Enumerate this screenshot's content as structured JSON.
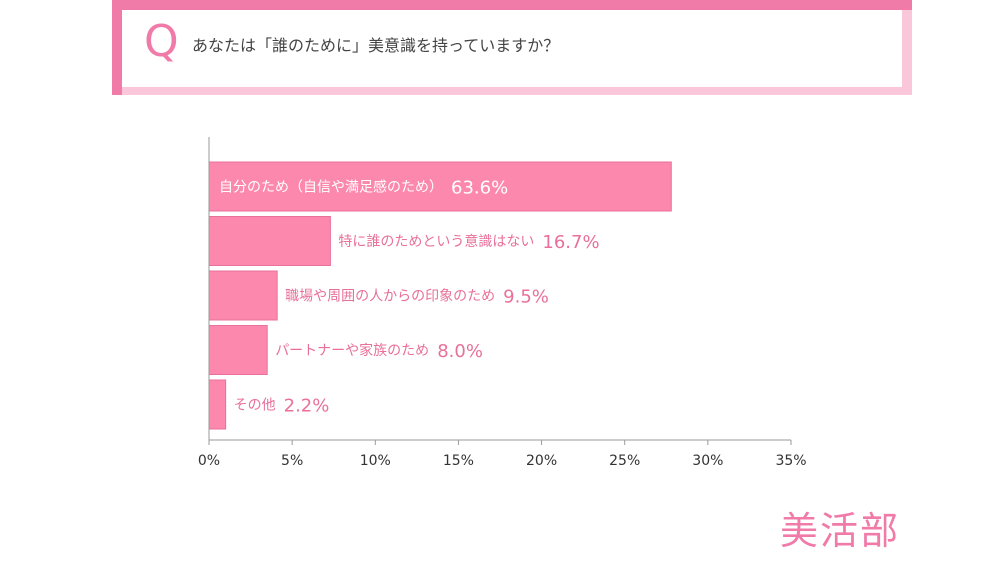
{
  "question": {
    "letter": "Q",
    "text": "あなたは「誰のために」美意識を持っていますか？"
  },
  "colors": {
    "accent": "#f07aa8",
    "accent_light": "#f9c6da",
    "bar": "#fc88ad",
    "bar_border": "#e8709a",
    "axis": "#9a9a9a",
    "tick_text": "#333333"
  },
  "chart_data": {
    "type": "bar",
    "orientation": "horizontal",
    "categories": [
      "自分のため（自信や満足感のため）",
      "特に誰のためという意識はない",
      "職場や周囲の人からの印象のため",
      "パートナーや家族のため",
      "その他"
    ],
    "values": [
      63.6,
      16.7,
      9.5,
      8.0,
      2.2
    ],
    "value_labels": [
      "63.6%",
      "16.7%",
      "9.5%",
      "8.0%",
      "2.2%"
    ],
    "bar_lengths": [
      27.8,
      7.3,
      4.1,
      3.5,
      1.0
    ],
    "x_ticks": [
      0,
      5,
      10,
      15,
      20,
      25,
      30,
      35
    ],
    "x_tick_labels": [
      "0%",
      "5%",
      "10%",
      "15%",
      "20%",
      "25%",
      "30%",
      "35%"
    ],
    "xlim": [
      0,
      35
    ],
    "grid": false,
    "title": "",
    "xlabel": "",
    "ylabel": ""
  },
  "logo": {
    "text": "美活部"
  }
}
